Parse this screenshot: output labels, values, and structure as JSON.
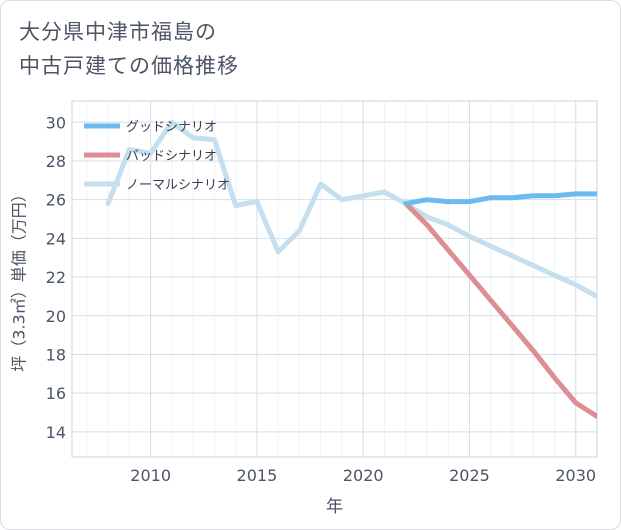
{
  "title_lines": [
    "大分県中津市福島の",
    "中古戸建ての価格推移"
  ],
  "chart_data": {
    "type": "line",
    "title": "大分県中津市福島の中古戸建ての価格推移",
    "xlabel": "年",
    "ylabel": "坪（3.3㎡）単価（万円）",
    "xlim": [
      2006.3,
      2031
    ],
    "ylim": [
      12.7,
      31.1
    ],
    "xticks": [
      2010,
      2015,
      2020,
      2025,
      2030
    ],
    "yticks": [
      14,
      16,
      18,
      20,
      22,
      24,
      26,
      28,
      30
    ],
    "grid": true,
    "legend_position": "top-left",
    "series": [
      {
        "name": "ノーマルシナリオ",
        "color": "#c5dfee",
        "x": [
          2008,
          2009,
          2010,
          2011,
          2012,
          2013,
          2014,
          2015,
          2016,
          2017,
          2018,
          2019,
          2020,
          2021,
          2022,
          2023,
          2024,
          2025,
          2026,
          2027,
          2028,
          2029,
          2030,
          2031
        ],
        "y": [
          25.8,
          28.6,
          28.4,
          30.0,
          29.2,
          29.1,
          25.7,
          25.9,
          23.3,
          24.4,
          26.8,
          26.0,
          26.2,
          26.4,
          25.8,
          25.1,
          24.7,
          24.1,
          23.6,
          23.1,
          22.6,
          22.1,
          21.6,
          21.0
        ]
      },
      {
        "name": "バッドシナリオ",
        "color": "#dd8e93",
        "x": [
          2022,
          2023,
          2024,
          2025,
          2026,
          2027,
          2028,
          2029,
          2030,
          2031
        ],
        "y": [
          25.8,
          24.7,
          23.4,
          22.1,
          20.8,
          19.5,
          18.2,
          16.8,
          15.5,
          14.8
        ]
      },
      {
        "name": "グッドシナリオ",
        "color": "#6cbaf0",
        "x": [
          2022,
          2023,
          2024,
          2025,
          2026,
          2027,
          2028,
          2029,
          2030,
          2031
        ],
        "y": [
          25.8,
          26.0,
          25.9,
          25.9,
          26.1,
          26.1,
          26.2,
          26.2,
          26.3,
          26.3
        ]
      }
    ],
    "legend": [
      "グッドシナリオ",
      "バッドシナリオ",
      "ノーマルシナリオ"
    ]
  }
}
